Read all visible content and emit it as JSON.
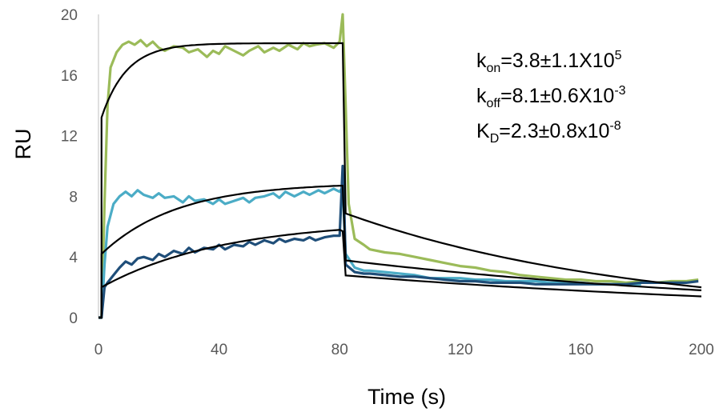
{
  "chart_data": {
    "type": "line",
    "xlabel": "Time (s)",
    "ylabel": "RU",
    "xlim": [
      0,
      200
    ],
    "ylim": [
      0,
      20
    ],
    "x_ticks": [
      0,
      40,
      80,
      120,
      160,
      200
    ],
    "y_ticks": [
      0,
      4,
      8,
      12,
      16,
      20
    ],
    "grid": false,
    "legend": "none",
    "annotations": {
      "kon_k": "k",
      "kon_sub": "on",
      "kon_val": "=3.8±1.1X10",
      "kon_exp": "5",
      "koff_k": "k",
      "koff_sub": "off",
      "koff_val": "=8.1±0.6X10",
      "koff_exp": "-3",
      "kd_k": "K",
      "kd_sub": "D",
      "kd_val": "=2.3±0.8x10",
      "kd_exp": "-8"
    },
    "series": [
      {
        "color": "#9bbb59",
        "points": [
          [
            0,
            0
          ],
          [
            1,
            0
          ],
          [
            2,
            7.5
          ],
          [
            3,
            14
          ],
          [
            4,
            16.5
          ],
          [
            6,
            17.5
          ],
          [
            8,
            18
          ],
          [
            10,
            18.2
          ],
          [
            12,
            18
          ],
          [
            14,
            18.3
          ],
          [
            16,
            17.9
          ],
          [
            18,
            18.2
          ],
          [
            20,
            17.8
          ],
          [
            22,
            17.6
          ],
          [
            25,
            17.9
          ],
          [
            28,
            17.8
          ],
          [
            30,
            17.5
          ],
          [
            33,
            17.7
          ],
          [
            36,
            17.2
          ],
          [
            38,
            17.6
          ],
          [
            40,
            17.4
          ],
          [
            42,
            17.9
          ],
          [
            45,
            17.6
          ],
          [
            48,
            17.3
          ],
          [
            50,
            17.6
          ],
          [
            53,
            17.9
          ],
          [
            55,
            17.5
          ],
          [
            58,
            17.8
          ],
          [
            60,
            17.6
          ],
          [
            63,
            18.0
          ],
          [
            66,
            17.7
          ],
          [
            68,
            18.1
          ],
          [
            70,
            17.9
          ],
          [
            72,
            18.0
          ],
          [
            75,
            18.1
          ],
          [
            78,
            17.8
          ],
          [
            80,
            18.2
          ],
          [
            81,
            20
          ],
          [
            82,
            14
          ],
          [
            83,
            7.5
          ],
          [
            85,
            5.2
          ],
          [
            88,
            4.8
          ],
          [
            90,
            4.5
          ],
          [
            95,
            4.3
          ],
          [
            100,
            4.2
          ],
          [
            105,
            4.0
          ],
          [
            110,
            3.8
          ],
          [
            115,
            3.6
          ],
          [
            120,
            3.4
          ],
          [
            125,
            3.3
          ],
          [
            130,
            3.1
          ],
          [
            135,
            3.0
          ],
          [
            140,
            2.8
          ],
          [
            145,
            2.7
          ],
          [
            150,
            2.6
          ],
          [
            155,
            2.5
          ],
          [
            160,
            2.5
          ],
          [
            165,
            2.4
          ],
          [
            170,
            2.4
          ],
          [
            175,
            2.3
          ],
          [
            180,
            2.4
          ],
          [
            185,
            2.3
          ],
          [
            190,
            2.4
          ],
          [
            195,
            2.4
          ],
          [
            199,
            2.5
          ]
        ]
      },
      {
        "color": "#4bacc6",
        "points": [
          [
            0,
            0
          ],
          [
            1,
            0
          ],
          [
            2,
            3.5
          ],
          [
            3,
            6
          ],
          [
            5,
            7.5
          ],
          [
            7,
            8.0
          ],
          [
            9,
            8.3
          ],
          [
            11,
            8.0
          ],
          [
            13,
            8.4
          ],
          [
            15,
            8.1
          ],
          [
            18,
            7.9
          ],
          [
            20,
            8.2
          ],
          [
            22,
            7.9
          ],
          [
            25,
            8.0
          ],
          [
            28,
            7.6
          ],
          [
            30,
            8.0
          ],
          [
            32,
            7.7
          ],
          [
            35,
            7.8
          ],
          [
            38,
            7.5
          ],
          [
            40,
            7.8
          ],
          [
            42,
            7.5
          ],
          [
            45,
            7.7
          ],
          [
            48,
            7.9
          ],
          [
            50,
            7.6
          ],
          [
            52,
            7.9
          ],
          [
            55,
            8.0
          ],
          [
            58,
            8.2
          ],
          [
            60,
            7.9
          ],
          [
            62,
            8.3
          ],
          [
            65,
            8.0
          ],
          [
            68,
            8.3
          ],
          [
            70,
            8.1
          ],
          [
            73,
            8.4
          ],
          [
            75,
            8.2
          ],
          [
            78,
            8.5
          ],
          [
            80,
            8.3
          ],
          [
            81,
            8.6
          ],
          [
            82,
            4.2
          ],
          [
            85,
            3.3
          ],
          [
            88,
            3.1
          ],
          [
            90,
            3.1
          ],
          [
            95,
            3.0
          ],
          [
            100,
            2.9
          ],
          [
            105,
            2.8
          ],
          [
            110,
            2.6
          ],
          [
            115,
            2.6
          ],
          [
            120,
            2.6
          ],
          [
            125,
            2.5
          ],
          [
            130,
            2.5
          ],
          [
            135,
            2.4
          ],
          [
            140,
            2.4
          ],
          [
            145,
            2.4
          ],
          [
            150,
            2.3
          ],
          [
            155,
            2.3
          ],
          [
            160,
            2.3
          ],
          [
            165,
            2.2
          ],
          [
            170,
            2.2
          ],
          [
            175,
            2.2
          ],
          [
            180,
            2.2
          ]
        ]
      },
      {
        "color": "#1f4e79",
        "points": [
          [
            0,
            0
          ],
          [
            1,
            0
          ],
          [
            2,
            2.0
          ],
          [
            3,
            2.3
          ],
          [
            5,
            2.8
          ],
          [
            7,
            3.3
          ],
          [
            9,
            3.7
          ],
          [
            11,
            3.5
          ],
          [
            13,
            3.9
          ],
          [
            15,
            4.0
          ],
          [
            18,
            3.8
          ],
          [
            20,
            4.2
          ],
          [
            22,
            4.0
          ],
          [
            25,
            4.4
          ],
          [
            28,
            4.2
          ],
          [
            30,
            4.6
          ],
          [
            32,
            4.3
          ],
          [
            35,
            4.6
          ],
          [
            38,
            4.5
          ],
          [
            40,
            4.8
          ],
          [
            42,
            4.5
          ],
          [
            45,
            4.8
          ],
          [
            48,
            4.7
          ],
          [
            50,
            5.0
          ],
          [
            52,
            4.8
          ],
          [
            55,
            5.1
          ],
          [
            58,
            4.9
          ],
          [
            60,
            5.2
          ],
          [
            62,
            5.0
          ],
          [
            65,
            5.2
          ],
          [
            68,
            5.1
          ],
          [
            70,
            5.3
          ],
          [
            72,
            5.1
          ],
          [
            75,
            5.3
          ],
          [
            78,
            5.4
          ],
          [
            80,
            5.4
          ],
          [
            81,
            10.0
          ],
          [
            81.5,
            7.5
          ],
          [
            82,
            3.5
          ],
          [
            85,
            3.0
          ],
          [
            88,
            2.9
          ],
          [
            90,
            2.9
          ],
          [
            95,
            2.8
          ],
          [
            100,
            2.7
          ],
          [
            105,
            2.7
          ],
          [
            110,
            2.6
          ],
          [
            115,
            2.5
          ],
          [
            120,
            2.4
          ],
          [
            125,
            2.4
          ],
          [
            130,
            2.3
          ],
          [
            135,
            2.3
          ],
          [
            140,
            2.3
          ],
          [
            145,
            2.2
          ],
          [
            150,
            2.2
          ],
          [
            155,
            2.2
          ],
          [
            160,
            2.2
          ],
          [
            165,
            2.2
          ],
          [
            170,
            2.2
          ],
          [
            175,
            2.2
          ],
          [
            180,
            2.3
          ],
          [
            185,
            2.3
          ],
          [
            190,
            2.3
          ],
          [
            195,
            2.3
          ],
          [
            199,
            2.4
          ]
        ]
      }
    ],
    "fits": [
      {
        "color": "#000000",
        "jump": 13.2,
        "plateau": 18.1,
        "k": 0.12,
        "end": 18.1,
        "decay_end": 2.0
      },
      {
        "color": "#000000",
        "jump": 4.2,
        "plateau": 8.9,
        "k": 0.04,
        "end": 8.7,
        "decay_end": 1.8
      },
      {
        "color": "#000000",
        "jump": 2.0,
        "plateau": 6.4,
        "k": 0.025,
        "end": 5.7,
        "decay_end": 1.4
      }
    ]
  }
}
